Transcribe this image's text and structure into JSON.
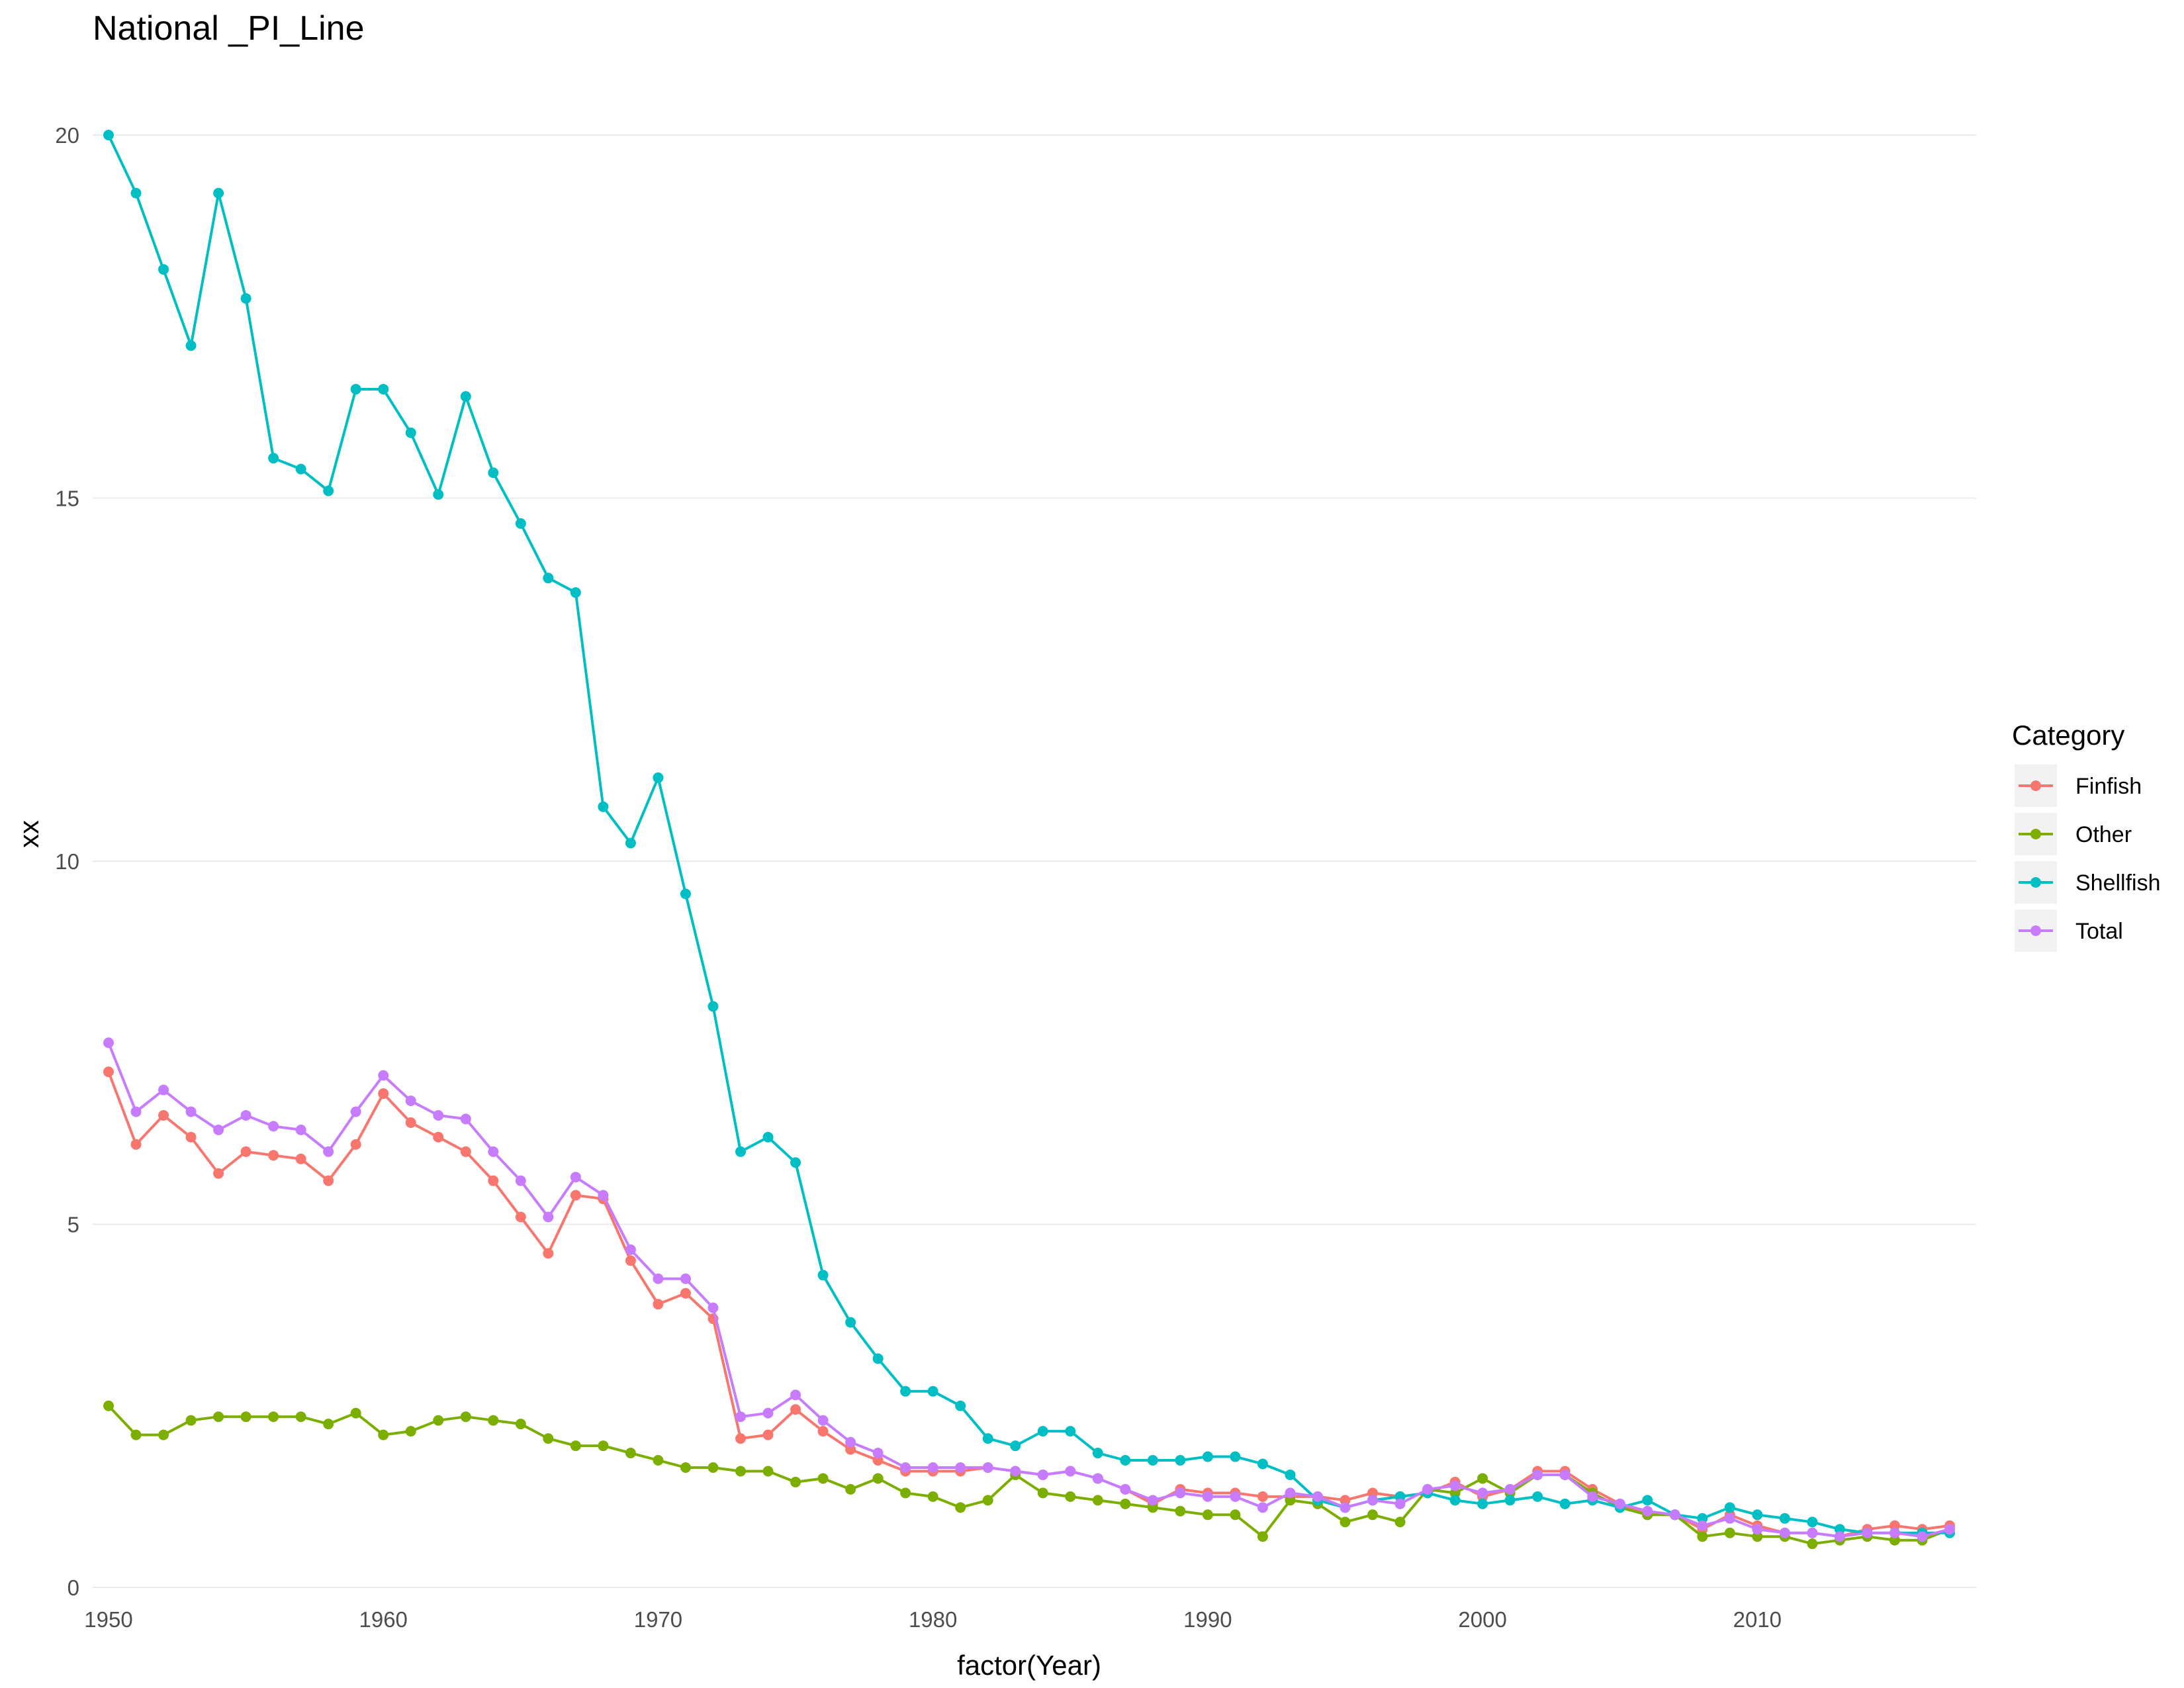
{
  "chart_data": {
    "type": "line",
    "title": "National _PI_Line",
    "xlabel": "factor(Year)",
    "ylabel": "xx",
    "x": [
      1950,
      1951,
      1952,
      1953,
      1954,
      1955,
      1956,
      1957,
      1958,
      1959,
      1960,
      1961,
      1962,
      1963,
      1964,
      1965,
      1966,
      1967,
      1968,
      1969,
      1970,
      1971,
      1972,
      1973,
      1974,
      1975,
      1976,
      1977,
      1978,
      1979,
      1980,
      1981,
      1982,
      1983,
      1984,
      1985,
      1986,
      1987,
      1988,
      1989,
      1990,
      1991,
      1992,
      1993,
      1994,
      1995,
      1996,
      1997,
      1998,
      1999,
      2000,
      2001,
      2002,
      2003,
      2004,
      2005,
      2006,
      2007,
      2008,
      2009,
      2010,
      2011,
      2012,
      2013,
      2014,
      2015,
      2016,
      2017
    ],
    "x_ticks": [
      1950,
      1960,
      1970,
      1980,
      1990,
      2000,
      2010
    ],
    "x_tick_labels": [
      "1950",
      "1960",
      "1970",
      "1980",
      "1990",
      "2000",
      "2010"
    ],
    "xlim": [
      1950,
      2017
    ],
    "y_ticks": [
      0,
      5,
      10,
      15,
      20
    ],
    "y_tick_labels": [
      "0",
      "5",
      "10",
      "15",
      "20"
    ],
    "ylim": [
      0,
      20
    ],
    "grid": true,
    "legend": {
      "title": "Category",
      "position": "right"
    },
    "series": [
      {
        "name": "Finfish",
        "color": "#F8766D",
        "values": [
          7.1,
          6.1,
          6.5,
          6.2,
          5.7,
          6.0,
          5.95,
          5.9,
          5.6,
          6.1,
          6.8,
          6.4,
          6.2,
          6.0,
          5.6,
          5.1,
          4.6,
          5.4,
          5.35,
          4.5,
          3.9,
          4.05,
          3.7,
          2.05,
          2.1,
          2.45,
          2.15,
          1.9,
          1.75,
          1.6,
          1.6,
          1.6,
          1.65,
          1.6,
          1.55,
          1.6,
          1.5,
          1.35,
          1.15,
          1.35,
          1.3,
          1.3,
          1.25,
          1.25,
          1.25,
          1.2,
          1.3,
          1.25,
          1.3,
          1.45,
          1.25,
          1.35,
          1.6,
          1.6,
          1.35,
          1.15,
          1.0,
          1.0,
          0.8,
          1.0,
          0.85,
          0.75,
          0.75,
          0.7,
          0.8,
          0.85,
          0.8,
          0.85
        ]
      },
      {
        "name": "Other",
        "color": "#7CAE00",
        "values": [
          2.5,
          2.1,
          2.1,
          2.3,
          2.35,
          2.35,
          2.35,
          2.35,
          2.25,
          2.4,
          2.1,
          2.15,
          2.3,
          2.35,
          2.3,
          2.25,
          2.05,
          1.95,
          1.95,
          1.85,
          1.75,
          1.65,
          1.65,
          1.6,
          1.6,
          1.45,
          1.5,
          1.35,
          1.5,
          1.3,
          1.25,
          1.1,
          1.2,
          1.55,
          1.3,
          1.25,
          1.2,
          1.15,
          1.1,
          1.05,
          1.0,
          1.0,
          0.7,
          1.2,
          1.15,
          0.9,
          1.0,
          0.9,
          1.35,
          1.3,
          1.5,
          1.3,
          1.55,
          1.55,
          1.3,
          1.1,
          1.0,
          1.0,
          0.7,
          0.75,
          0.7,
          0.7,
          0.6,
          0.65,
          0.7,
          0.65,
          0.65,
          0.8
        ]
      },
      {
        "name": "Shellfish",
        "color": "#00BFC4",
        "values": [
          20.0,
          19.2,
          18.15,
          17.1,
          19.2,
          17.75,
          15.55,
          15.4,
          15.1,
          16.5,
          16.5,
          15.9,
          15.05,
          16.4,
          15.35,
          14.65,
          13.9,
          13.7,
          10.75,
          10.25,
          11.15,
          9.55,
          8.0,
          6.0,
          6.2,
          5.85,
          4.3,
          3.65,
          3.15,
          2.7,
          2.7,
          2.5,
          2.05,
          1.95,
          2.15,
          2.15,
          1.85,
          1.75,
          1.75,
          1.75,
          1.8,
          1.8,
          1.7,
          1.55,
          1.2,
          1.1,
          1.2,
          1.25,
          1.3,
          1.2,
          1.15,
          1.2,
          1.25,
          1.15,
          1.2,
          1.1,
          1.2,
          1.0,
          0.95,
          1.1,
          1.0,
          0.95,
          0.9,
          0.8,
          0.75,
          0.75,
          0.75,
          0.75
        ]
      },
      {
        "name": "Total",
        "color": "#C77CFF",
        "values": [
          7.5,
          6.55,
          6.85,
          6.55,
          6.3,
          6.5,
          6.35,
          6.3,
          6.0,
          6.55,
          7.05,
          6.7,
          6.5,
          6.45,
          6.0,
          5.6,
          5.1,
          5.65,
          5.4,
          4.65,
          4.25,
          4.25,
          3.85,
          2.35,
          2.4,
          2.65,
          2.3,
          2.0,
          1.85,
          1.65,
          1.65,
          1.65,
          1.65,
          1.6,
          1.55,
          1.6,
          1.5,
          1.35,
          1.2,
          1.3,
          1.25,
          1.25,
          1.1,
          1.3,
          1.25,
          1.1,
          1.2,
          1.15,
          1.35,
          1.4,
          1.3,
          1.35,
          1.55,
          1.55,
          1.25,
          1.15,
          1.05,
          1.0,
          0.85,
          0.95,
          0.8,
          0.75,
          0.75,
          0.7,
          0.75,
          0.75,
          0.7,
          0.8
        ]
      }
    ]
  }
}
